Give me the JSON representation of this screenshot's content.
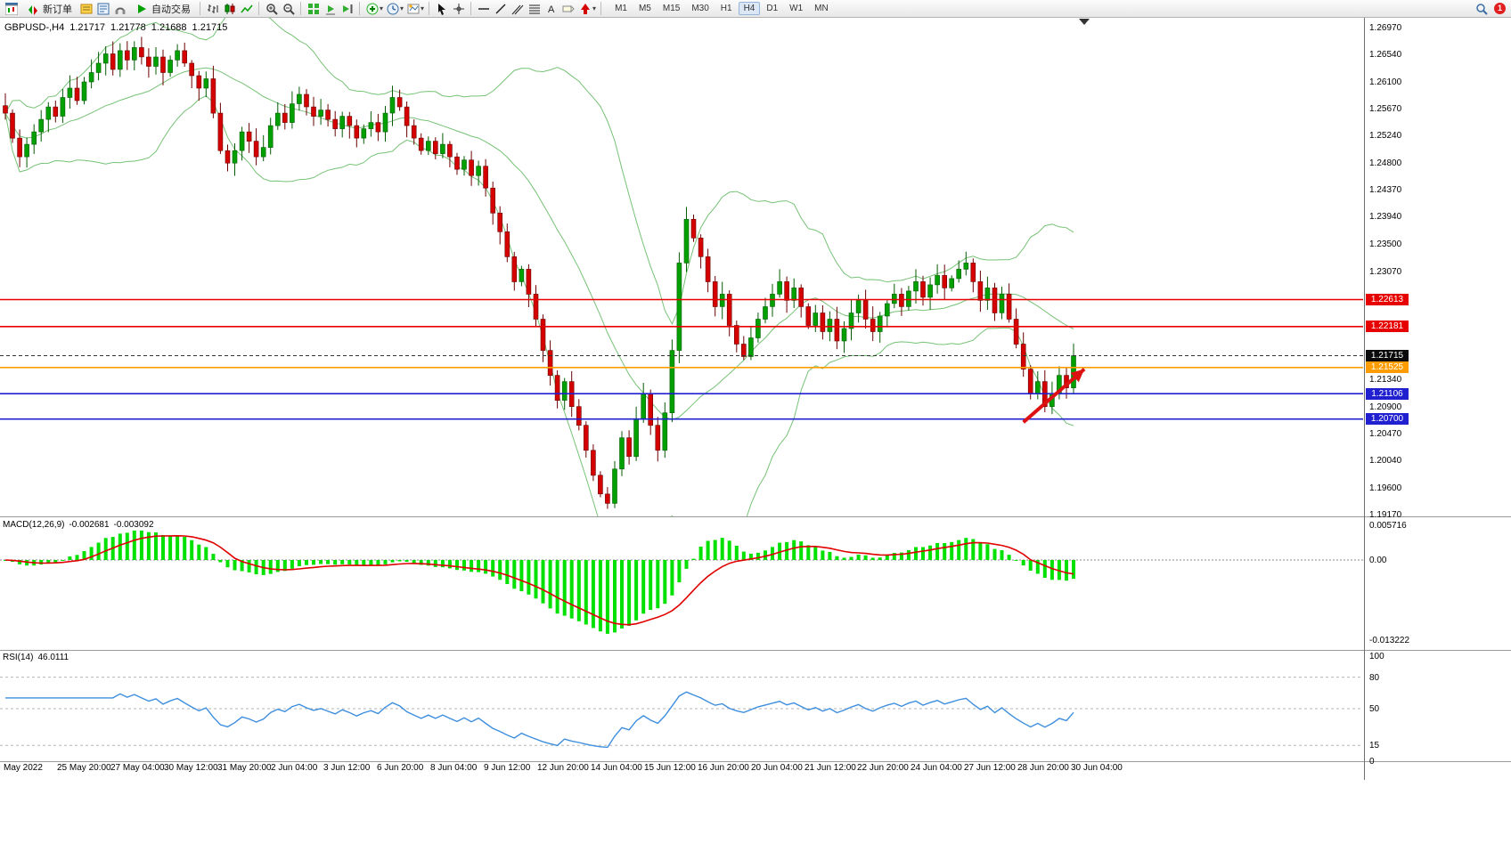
{
  "toolbar": {
    "new_order_label": "新订单",
    "autotrading_label": "自动交易",
    "timeframes": [
      "M1",
      "M5",
      "M15",
      "M30",
      "H1",
      "H4",
      "D1",
      "W1",
      "MN"
    ],
    "active_timeframe": "H4",
    "notification_count": "1"
  },
  "quote": {
    "instrument": "GBPUSD-,H4",
    "open": "1.21717",
    "high": "1.21778",
    "low": "1.21688",
    "close": "1.21715"
  },
  "price_axis": {
    "ticks": [
      "1.26970",
      "1.26540",
      "1.26100",
      "1.25670",
      "1.25240",
      "1.24800",
      "1.24370",
      "1.23940",
      "1.23500",
      "1.23070",
      "1.21340",
      "1.20900",
      "1.20470",
      "1.20040",
      "1.19600",
      "1.19170"
    ],
    "badges": [
      {
        "text": "1.22613",
        "color": "#e60000"
      },
      {
        "text": "1.22181",
        "color": "#e60000"
      },
      {
        "text": "1.21715",
        "color": "#0a0a0a"
      },
      {
        "text": "1.21525",
        "color": "#ff9d00"
      },
      {
        "text": "1.21106",
        "color": "#2020d0"
      },
      {
        "text": "1.20700",
        "color": "#2020d0"
      }
    ]
  },
  "levels": [
    {
      "price": 1.22613,
      "color": "#e60000",
      "style": "solid"
    },
    {
      "price": 1.22181,
      "color": "#e60000",
      "style": "solid"
    },
    {
      "price": 1.21715,
      "color": "#333333",
      "style": "dashed"
    },
    {
      "price": 1.21525,
      "color": "#ff9d00",
      "style": "solid"
    },
    {
      "price": 1.21106,
      "color": "#2020d0",
      "style": "solid"
    },
    {
      "price": 1.207,
      "color": "#2020d0",
      "style": "solid"
    }
  ],
  "time_axis": [
    "May 2022",
    "25 May 20:00",
    "27 May 04:00",
    "30 May 12:00",
    "31 May 20:00",
    "2 Jun 04:00",
    "3 Jun 12:00",
    "6 Jun 20:00",
    "8 Jun 04:00",
    "9 Jun 12:00",
    "12 Jun 20:00",
    "14 Jun 04:00",
    "15 Jun 12:00",
    "16 Jun 20:00",
    "20 Jun 04:00",
    "21 Jun 12:00",
    "22 Jun 20:00",
    "24 Jun 04:00",
    "27 Jun 12:00",
    "28 Jun 20:00",
    "30 Jun 04:00"
  ],
  "indicators": {
    "macd": {
      "label": "MACD(12,26,9)",
      "value_main": "-0.002681",
      "value_signal": "-0.003092",
      "axis": [
        "0.005716",
        "0.00",
        "-0.013222"
      ],
      "histogram_color": "#00e100",
      "signal_color": "#e00000"
    },
    "rsi": {
      "label": "RSI(14)",
      "value": "46.0111",
      "axis": [
        "100",
        "80",
        "50",
        "15",
        "0"
      ],
      "levels": [
        80,
        50,
        15
      ],
      "line_color": "#3e8ede"
    }
  },
  "annotation": {
    "type": "arrow",
    "color": "#dd1111",
    "from_index": 142,
    "from_price": 1.2065,
    "to_index": 150.5,
    "to_price": 1.215
  },
  "chart_data": {
    "type": "candlestick",
    "symbol": "GBPUSD-",
    "timeframe": "H4",
    "price_range": [
      1.1917,
      1.2697
    ],
    "up_color": "#00a000",
    "down_color": "#d50000",
    "bollinger": {
      "period": 20,
      "deviation": 2,
      "color": "#76c276"
    },
    "closes": [
      1.256,
      1.252,
      1.249,
      1.251,
      1.253,
      1.255,
      1.257,
      1.2555,
      1.2585,
      1.26,
      1.258,
      1.261,
      1.2625,
      1.264,
      1.2655,
      1.263,
      1.266,
      1.2645,
      1.2665,
      1.265,
      1.2635,
      1.265,
      1.2625,
      1.2645,
      1.266,
      1.264,
      1.262,
      1.26,
      1.2615,
      1.256,
      1.25,
      1.248,
      1.25,
      1.253,
      1.2515,
      1.249,
      1.2505,
      1.254,
      1.256,
      1.2545,
      1.2575,
      1.259,
      1.257,
      1.2555,
      1.2565,
      1.255,
      1.2535,
      1.2555,
      1.254,
      1.252,
      1.2535,
      1.2545,
      1.253,
      1.256,
      1.2585,
      1.257,
      1.254,
      1.252,
      1.25,
      1.2515,
      1.2495,
      1.251,
      1.249,
      1.247,
      1.2485,
      1.246,
      1.2475,
      1.244,
      1.24,
      1.237,
      1.233,
      1.229,
      1.231,
      1.227,
      1.223,
      1.218,
      1.214,
      1.21,
      1.213,
      1.209,
      1.206,
      1.202,
      1.198,
      1.195,
      1.1935,
      1.199,
      1.204,
      1.201,
      1.207,
      1.211,
      1.206,
      1.202,
      1.208,
      1.218,
      1.232,
      1.239,
      1.236,
      1.233,
      1.229,
      1.225,
      1.227,
      1.222,
      1.219,
      1.217,
      1.22,
      1.223,
      1.225,
      1.227,
      1.229,
      1.226,
      1.228,
      1.225,
      1.222,
      1.224,
      1.221,
      1.223,
      1.2195,
      1.2215,
      1.224,
      1.226,
      1.223,
      1.221,
      1.2235,
      1.2255,
      1.227,
      1.225,
      1.2275,
      1.229,
      1.2265,
      1.2285,
      1.23,
      1.228,
      1.2295,
      1.231,
      1.232,
      1.229,
      1.226,
      1.228,
      1.224,
      1.227,
      1.223,
      1.219,
      1.215,
      1.211,
      1.213,
      1.209,
      1.211,
      1.214,
      1.212,
      1.21715
    ]
  }
}
